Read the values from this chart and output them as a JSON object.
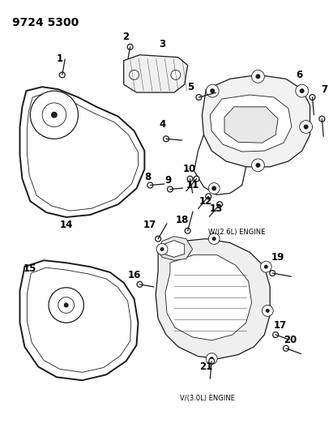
{
  "title": "9724 5300",
  "background_color": "#ffffff",
  "line_color": "#1a1a1a",
  "label_color": "#000000",
  "fig_width": 4.11,
  "fig_height": 5.33,
  "dpi": 100,
  "top_label": "9724 5300",
  "engine_label_1": "W/(2.6L) ENGINE",
  "engine_label_2": "V/(3.0L) ENGINE"
}
